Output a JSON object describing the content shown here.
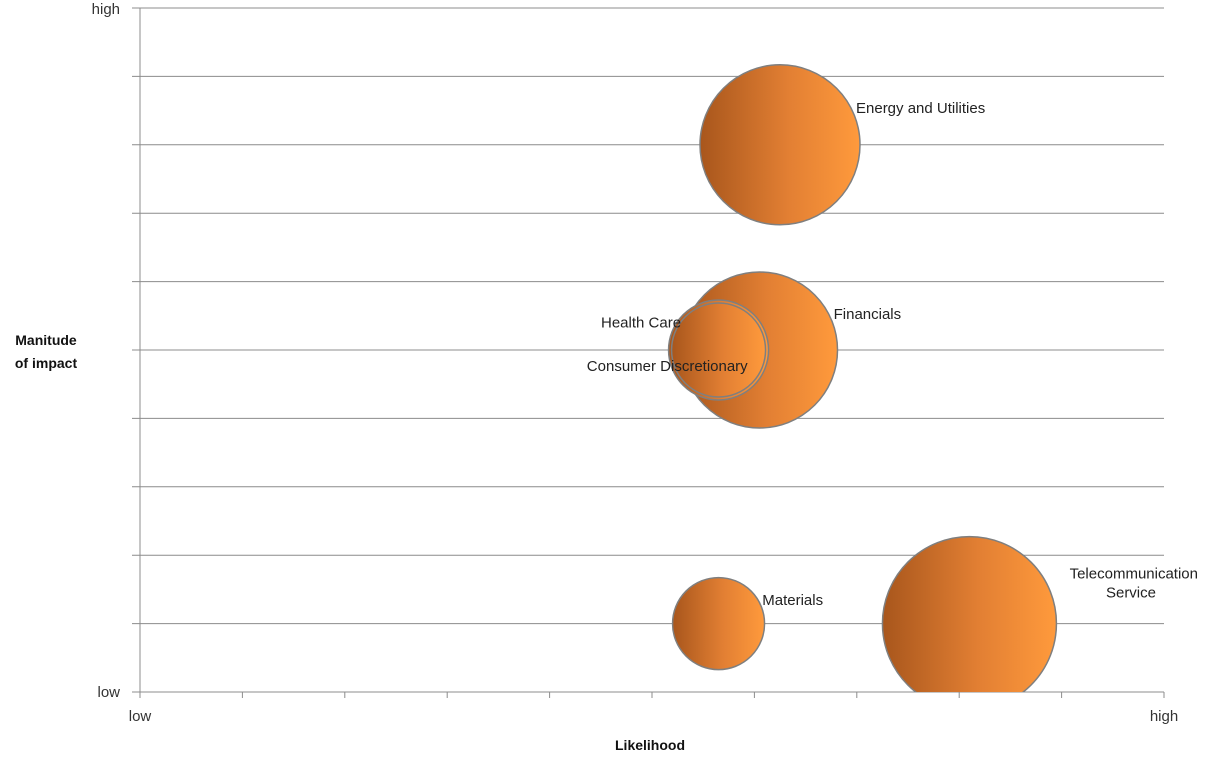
{
  "chart_data": {
    "type": "bubble",
    "xlabel": "Likelihood",
    "ylabel_lines": [
      "Manitude",
      "of impact"
    ],
    "x_tick_labels": {
      "low": "low",
      "high": "high"
    },
    "y_tick_labels": {
      "low": "low",
      "high": "high"
    },
    "xlim": [
      0,
      10
    ],
    "ylim": [
      0,
      10
    ],
    "grid": "horizontal",
    "x_minor_ticks": 10,
    "y_gridlines": 10,
    "bubble_gradient": {
      "dark": "#a8561c",
      "mid": "#e27f33",
      "light": "#ff9a3c"
    },
    "bubble_stroke": "#7f7f7f",
    "series": [
      {
        "name": "Energy and Utilities",
        "x": 6.25,
        "y": 8.0,
        "size": 0.8,
        "label_side": "right"
      },
      {
        "name": "Financials",
        "x": 6.05,
        "y": 5.0,
        "size": 0.78,
        "label_side": "right"
      },
      {
        "name": "Health Care",
        "x": 5.65,
        "y": 5.0,
        "size": 0.5,
        "label_side": "left-upper"
      },
      {
        "name": "Consumer Discretionary",
        "x": 5.65,
        "y": 5.0,
        "size": 0.47,
        "label_side": "left-lower"
      },
      {
        "name": "Materials",
        "x": 5.65,
        "y": 1.0,
        "size": 0.46,
        "label_side": "right"
      },
      {
        "name": "Telecommunication\nService",
        "x": 8.1,
        "y": 1.0,
        "size": 0.87,
        "label_side": "right"
      }
    ]
  }
}
